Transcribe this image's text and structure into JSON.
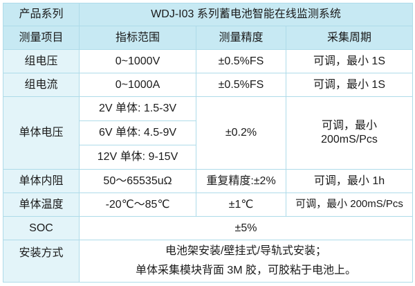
{
  "table": {
    "product_series": {
      "label": "产品系列",
      "value": "WDJ-I03 系列蓄电池智能在线监测系统"
    },
    "columns": {
      "item": "测量项目",
      "range": "指标范围",
      "accuracy": "测量精度",
      "period": "采集周期"
    },
    "pack_voltage": {
      "label": "组电压",
      "range": "0~1000V",
      "accuracy": "±0.5%FS",
      "period": "可调，最小 1S"
    },
    "pack_current": {
      "label": "组电流",
      "range": "0~1000A",
      "accuracy": "±0.5%FS",
      "period": "可调，最小 1S"
    },
    "cell_voltage": {
      "label": "单体电压",
      "range_2v": "2V 单体: 1.5-3V",
      "range_6v": "6V 单体: 4.5-9V",
      "range_12v": "12V 单体: 9-15V",
      "accuracy": "±0.2%",
      "period_line1": "可调，最小",
      "period_line2": "200mS/Pcs"
    },
    "cell_resistance": {
      "label": "单体内阻",
      "range": "50～65535uΩ",
      "accuracy": "重复精度:±2%",
      "period": "可调，最小 1h"
    },
    "cell_temperature": {
      "label": "单体温度",
      "range": "-20℃～85℃",
      "accuracy": "±1℃",
      "period": "可调，最小 200mS/Pcs"
    },
    "soc": {
      "label": "SOC",
      "value": "±5%"
    },
    "installation": {
      "label": "安装方式",
      "line1": "电池架安装/壁挂式/导轨式安装；",
      "line2": "单体采集模块背面 3M 胶，可胶粘于电池上。"
    }
  },
  "colors": {
    "header_bg": "#c7e9f3",
    "label_bg": "#e3f4f9",
    "border": "#aedbe9",
    "text": "#1a1a1a",
    "cell_bg": "#ffffff"
  }
}
